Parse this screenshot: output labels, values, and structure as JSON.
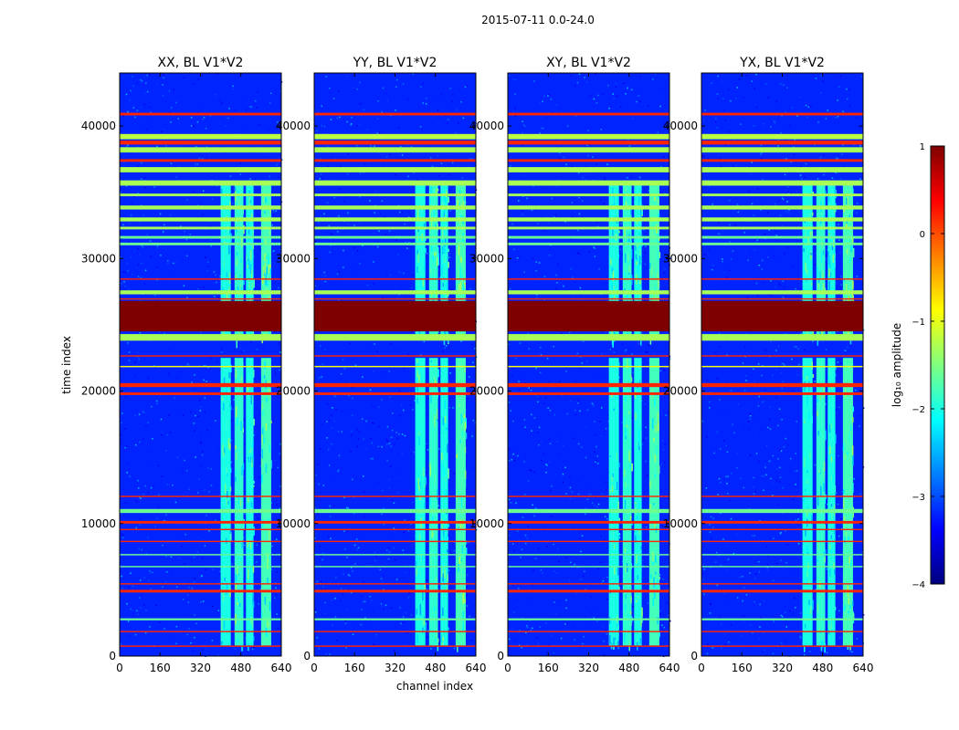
{
  "chart_data": {
    "type": "heatmap",
    "suptitle": "2015-07-11 0.0-24.0",
    "xlabel": "channel index",
    "ylabel": "time index",
    "xlim": [
      0,
      640
    ],
    "ylim": [
      0,
      44000
    ],
    "xticks": [
      0,
      160,
      320,
      480,
      640
    ],
    "yticks": [
      0,
      10000,
      20000,
      30000,
      40000
    ],
    "colorbar": {
      "label": "log₁₀ amplitude",
      "min": -4,
      "max": 1,
      "ticks": [
        1,
        0,
        -1,
        -2,
        -3,
        -4
      ],
      "tick_labels": [
        "1",
        "0",
        "−1",
        "−2",
        "−3",
        "−4"
      ],
      "colormap": [
        "#00007f",
        "#0000ff",
        "#007fff",
        "#00ffff",
        "#7fff7f",
        "#ffff00",
        "#ff7f00",
        "#ff0000",
        "#7f0000"
      ]
    },
    "panels": [
      {
        "title": "XX, BL V1*V2",
        "background_log_amplitude": -3.2
      },
      {
        "title": "YY, BL V1*V2",
        "background_log_amplitude": -3.2
      },
      {
        "title": "XY, BL V1*V2",
        "background_log_amplitude": -3.2
      },
      {
        "title": "YX, BL V1*V2",
        "background_log_amplitude": -3.2
      }
    ],
    "rfi_channel_bands": [
      {
        "start": 400,
        "end": 440,
        "level": -2.0
      },
      {
        "start": 455,
        "end": 490,
        "level": -1.9
      },
      {
        "start": 500,
        "end": 530,
        "level": -2.0
      },
      {
        "start": 560,
        "end": 600,
        "level": -1.8
      }
    ],
    "rfi_time_active_ranges": [
      [
        800,
        22500
      ],
      [
        24000,
        35500
      ]
    ],
    "flagged_time_bands": [
      {
        "start": 24500,
        "end": 26800,
        "level": 1.0
      },
      {
        "start": 26900,
        "end": 27000,
        "level": 0.2
      },
      {
        "start": 27300,
        "end": 27600,
        "level": -1.3
      },
      {
        "start": 23800,
        "end": 24300,
        "level": -1.3
      },
      {
        "start": 40800,
        "end": 41000,
        "level": 0.2
      },
      {
        "start": 39000,
        "end": 39400,
        "level": -1.2
      },
      {
        "start": 38600,
        "end": 38900,
        "level": 0.2
      },
      {
        "start": 38000,
        "end": 38400,
        "level": -1.3
      },
      {
        "start": 37300,
        "end": 37500,
        "level": 0.2
      },
      {
        "start": 36500,
        "end": 36900,
        "level": -1.3
      },
      {
        "start": 35500,
        "end": 35900,
        "level": -1.3
      },
      {
        "start": 34700,
        "end": 34900,
        "level": -1.3
      },
      {
        "start": 33700,
        "end": 34000,
        "level": -1.3
      },
      {
        "start": 32800,
        "end": 33100,
        "level": -1.3
      },
      {
        "start": 32200,
        "end": 32400,
        "level": -1.3
      },
      {
        "start": 31500,
        "end": 31700,
        "level": -1.6
      },
      {
        "start": 31000,
        "end": 31200,
        "level": -1.6
      },
      {
        "start": 28400,
        "end": 28500,
        "level": 0.2
      },
      {
        "start": 22600,
        "end": 22700,
        "level": 0.2
      },
      {
        "start": 21800,
        "end": 21900,
        "level": -0.9
      },
      {
        "start": 20300,
        "end": 20600,
        "level": 0.2
      },
      {
        "start": 19700,
        "end": 19900,
        "level": 0.2
      },
      {
        "start": 12000,
        "end": 12100,
        "level": 0.2
      },
      {
        "start": 10800,
        "end": 11100,
        "level": -1.6
      },
      {
        "start": 10000,
        "end": 10200,
        "level": 0.2
      },
      {
        "start": 9500,
        "end": 9600,
        "level": 0.2
      },
      {
        "start": 8600,
        "end": 8700,
        "level": 0.2
      },
      {
        "start": 7600,
        "end": 7700,
        "level": -1.6
      },
      {
        "start": 6700,
        "end": 6800,
        "level": -1.6
      },
      {
        "start": 5400,
        "end": 5500,
        "level": 0.2
      },
      {
        "start": 4800,
        "end": 5000,
        "level": 0.2
      },
      {
        "start": 2700,
        "end": 2850,
        "level": -1.6
      },
      {
        "start": 1800,
        "end": 1900,
        "level": 0.2
      },
      {
        "start": 700,
        "end": 800,
        "level": 0.2
      }
    ]
  }
}
